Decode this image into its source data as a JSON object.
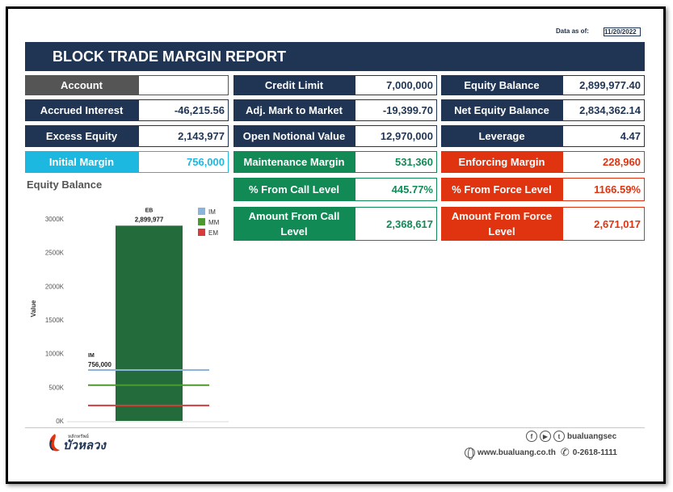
{
  "data_as_of": {
    "label": "Data as of:",
    "value": "11/20/2022"
  },
  "title": "BLOCK TRADE MARGIN REPORT",
  "cards": {
    "account": {
      "label": "Account",
      "value": ""
    },
    "accrued_interest": {
      "label": "Accrued Interest",
      "value": "-46,215.56"
    },
    "excess_equity": {
      "label": "Excess Equity",
      "value": "2,143,977"
    },
    "initial_margin": {
      "label": "Initial Margin",
      "value": "756,000"
    },
    "credit_limit": {
      "label": "Credit Limit",
      "value": "7,000,000"
    },
    "adj_mark_to_market": {
      "label": "Adj. Mark to Market",
      "value": "-19,399.70"
    },
    "open_notional_value": {
      "label": "Open Notional Value",
      "value": "12,970,000"
    },
    "maintenance_margin": {
      "label": "Maintenance Margin",
      "value": "531,360"
    },
    "pct_from_call_level": {
      "label": "% From Call Level",
      "value": "445.77%"
    },
    "amount_from_call_level": {
      "label": "Amount From Call Level",
      "value": "2,368,617"
    },
    "equity_balance": {
      "label": "Equity Balance",
      "value": "2,899,977.40"
    },
    "net_equity_balance": {
      "label": "Net Equity Balance",
      "value": "2,834,362.14"
    },
    "leverage": {
      "label": "Leverage",
      "value": "4.47"
    },
    "enforcing_margin": {
      "label": "Enforcing Margin",
      "value": "228,960"
    },
    "pct_from_force_level": {
      "label": "% From Force Level",
      "value": "1166.59%"
    },
    "amount_from_force_level": {
      "label": "Amount From Force Level",
      "value": "2,671,017"
    }
  },
  "equity_section_title": "Equity Balance",
  "chart_data": {
    "type": "bar",
    "categories": [
      "EB"
    ],
    "values": [
      2899977
    ],
    "data_labels": [
      "2,899,977"
    ],
    "ylabel": "Value",
    "ylim": [
      0,
      3200000
    ],
    "yticks": [
      0,
      500000,
      1000000,
      1500000,
      2000000,
      2500000,
      3000000
    ],
    "ytick_labels": [
      "0K",
      "500K",
      "1000K",
      "1500K",
      "2000K",
      "2500K",
      "3000K"
    ],
    "bar_color": "#236b3a",
    "reference_lines": [
      {
        "name": "IM",
        "value": 756000,
        "color": "#8ab4dc",
        "annotation": "IM",
        "annotation_value": "756,000"
      },
      {
        "name": "MM",
        "value": 531360,
        "color": "#4a9a2e"
      },
      {
        "name": "EM",
        "value": 228960,
        "color": "#d93a3a"
      }
    ],
    "legend": {
      "placement": "top-right",
      "entries": [
        "IM",
        "MM",
        "EM"
      ]
    },
    "grid": false
  },
  "footer": {
    "brand_small": "หลักทรัพย์",
    "brand_name": "บัวหลวง",
    "social_handle": "bualuangsec",
    "social_icons": [
      "facebook-icon",
      "youtube-icon",
      "twitter-icon"
    ],
    "website": "www.bualuang.co.th",
    "phone": "0-2618-1111"
  }
}
